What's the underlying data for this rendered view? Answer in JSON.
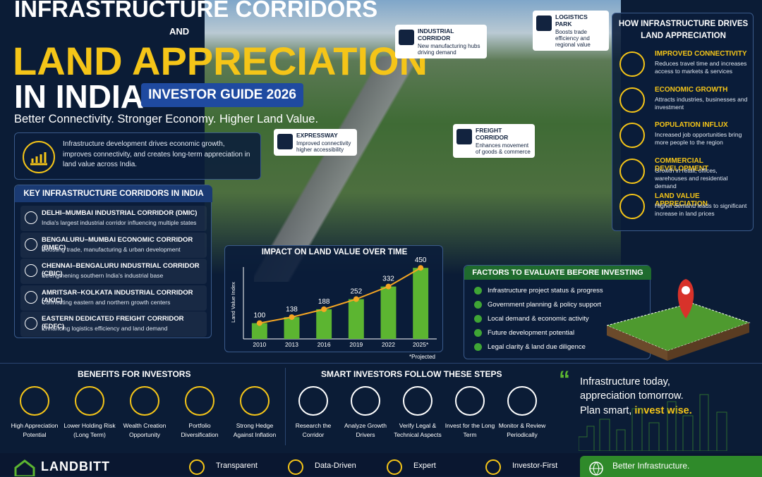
{
  "header": {
    "title_line1": "INFRASTRUCTURE CORRIDORS",
    "title_and": "AND",
    "title_line2": "LAND APPRECIATION",
    "title_line3": "IN INDIA",
    "badge": "INVESTOR GUIDE 2026",
    "tagline": "Better Connectivity. Stronger Economy. Higher Land Value.",
    "intro": "Infrastructure development drives economic growth, improves connectivity, and creates long-term appreciation in land value across India."
  },
  "callouts": [
    {
      "title": "INDUSTRIAL CORRIDOR",
      "text": "New manufacturing hubs driving demand"
    },
    {
      "title": "LOGISTICS PARK",
      "text": "Boosts trade efficiency and regional value"
    },
    {
      "title": "EXPRESSWAY",
      "text": "Improved connectivity higher accessibility"
    },
    {
      "title": "FREIGHT CORRIDOR",
      "text": "Enhances movement of goods & commerce"
    }
  ],
  "drivers": {
    "title": "HOW INFRASTRUCTURE DRIVES LAND APPRECIATION",
    "items": [
      {
        "title": "IMPROVED CONNECTIVITY",
        "text": "Reduces travel time and increases access to markets & services"
      },
      {
        "title": "ECONOMIC GROWTH",
        "text": "Attracts industries, businesses and investment"
      },
      {
        "title": "POPULATION INFLUX",
        "text": "Increased job opportunities bring more people to the region"
      },
      {
        "title": "COMMERCIAL DEVELOPMENT",
        "text": "Growth in retail, offices, warehouses and residential demand"
      },
      {
        "title": "LAND VALUE APPRECIATION",
        "text": "Higher demand leads to significant increase in land prices"
      }
    ]
  },
  "corridors": {
    "title": "KEY INFRASTRUCTURE CORRIDORS IN INDIA",
    "items": [
      {
        "title": "DELHI–MUMBAI INDUSTRIAL CORRIDOR (DMIC)",
        "text": "India's largest industrial corridor influencing multiple states"
      },
      {
        "title": "BENGALURU–MUMBAI ECONOMIC CORRIDOR (BMEC)",
        "text": "Boosting trade, manufacturing & urban development"
      },
      {
        "title": "CHENNAI–BENGALURU INDUSTRIAL CORRIDOR (CBIC)",
        "text": "Strengthening southern India's industrial base"
      },
      {
        "title": "AMRITSAR–KOLKATA INDUSTRIAL CORRIDOR (AKIC)",
        "text": "Connecting eastern and northern growth centers"
      },
      {
        "title": "EASTERN DEDICATED FREIGHT CORRIDOR (EDFC)",
        "text": "Enhancing logistics efficiency and land demand"
      }
    ]
  },
  "chart_data": {
    "type": "bar",
    "title": "IMPACT ON LAND VALUE OVER TIME",
    "y_label": "Land Value Index",
    "note": "*Projected",
    "categories": [
      "2010",
      "2013",
      "2016",
      "2019",
      "2022",
      "2025*"
    ],
    "values": [
      100,
      138,
      188,
      252,
      332,
      450
    ],
    "ylim": [
      0,
      500
    ],
    "color": "#5cb531",
    "line_color": "#f5a623"
  },
  "factors": {
    "title": "FACTORS TO EVALUATE BEFORE INVESTING",
    "items": [
      "Infrastructure project status & progress",
      "Government planning & policy support",
      "Local demand & economic activity",
      "Future development potential",
      "Legal clarity & land due diligence"
    ]
  },
  "benefits": {
    "title": "BENEFITS FOR INVESTORS",
    "items": [
      "High Appreciation Potential",
      "Lower Holding Risk (Long Term)",
      "Wealth Creation Opportunity",
      "Portfolio Diversification",
      "Strong Hedge Against Inflation"
    ]
  },
  "steps": {
    "title": "SMART INVESTORS FOLLOW THESE STEPS",
    "items": [
      "Research the Corridor",
      "Analyze Growth Drivers",
      "Verify Legal & Technical Aspects",
      "Invest for the Long Term",
      "Monitor & Review Periodically"
    ]
  },
  "quote": {
    "line1": "Infrastructure today,",
    "line2": "appreciation tomorrow.",
    "line3_a": "Plan smart,",
    "line3_b": "invest wise."
  },
  "footer": {
    "brand": "LANDBITT",
    "items": [
      "Transparent",
      "Data-Driven",
      "Expert",
      "Investor-First"
    ],
    "banner": "Better Infrastructure."
  }
}
